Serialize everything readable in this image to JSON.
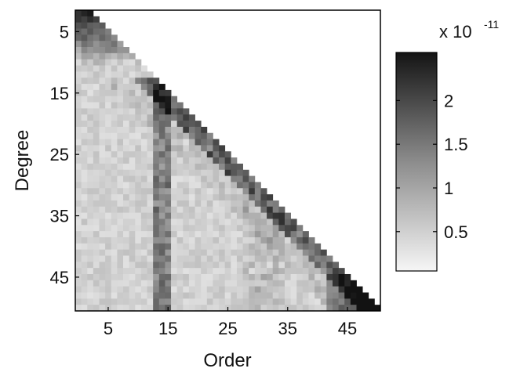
{
  "chart_data": {
    "type": "heatmap",
    "xlabel": "Order",
    "ylabel": "Degree",
    "x_ticks": [
      5,
      15,
      25,
      35,
      45
    ],
    "y_ticks": [
      5,
      15,
      25,
      35,
      45
    ],
    "degree_range": [
      2,
      50
    ],
    "order_range": [
      0,
      50
    ],
    "structure": "lower-triangular (order <= degree)",
    "colormap": "gray reversed (white = low, black = high)",
    "colorbar": {
      "ticks": [
        "0.5",
        "1",
        "1.5",
        "2"
      ],
      "tick_values": [
        0.5,
        1.0,
        1.5,
        2.0
      ],
      "range": [
        0.05,
        2.55
      ],
      "multiplier": "x 10",
      "exponent": "-11"
    },
    "pattern_description": [
      {
        "region": "low degree (2-10)",
        "value": "high (~1.5-2.5e-11)"
      },
      {
        "region": "order 13-15 column",
        "value": "elevated (~1.0-1.8e-11)"
      },
      {
        "region": "near diagonal, degree 28-50",
        "value": "elevated (~1.2-2.0e-11)"
      },
      {
        "region": "degree 45-50, order 44-50",
        "value": "highest (~2.3-2.5e-11)"
      },
      {
        "region": "interior, high degree, low order",
        "value": "low (~0.1-0.5e-11)"
      }
    ]
  }
}
